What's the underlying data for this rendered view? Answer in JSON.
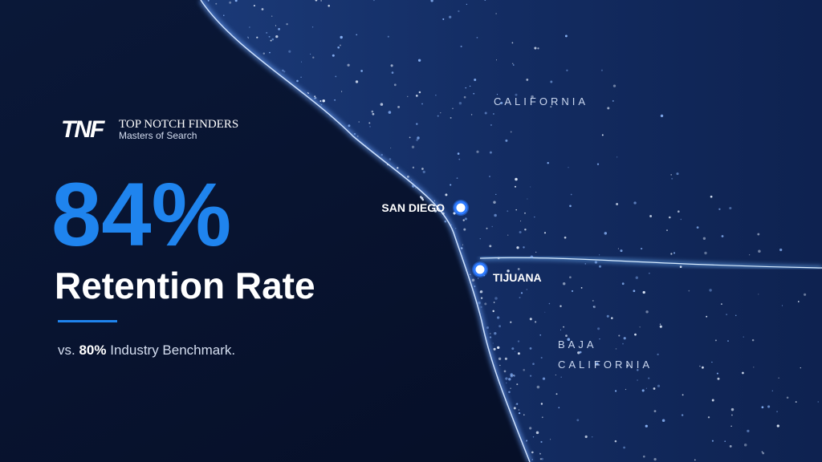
{
  "brand": {
    "logo": "TNF",
    "name": "TOP NOTCH FINDERS",
    "tagline": "Masters of Search"
  },
  "headline": {
    "stat": "84%",
    "label": "Retention Rate"
  },
  "benchmark": {
    "prefix": "vs.",
    "value": "80%",
    "suffix": "Industry Benchmark."
  },
  "map": {
    "regions": [
      {
        "lines": [
          "CALIFORNIA"
        ]
      },
      {
        "lines": [
          "BAJA",
          "CALIFORNIA"
        ]
      }
    ],
    "cities": [
      {
        "name": "SAN DIEGO"
      },
      {
        "name": "TIJUANA"
      }
    ]
  }
}
